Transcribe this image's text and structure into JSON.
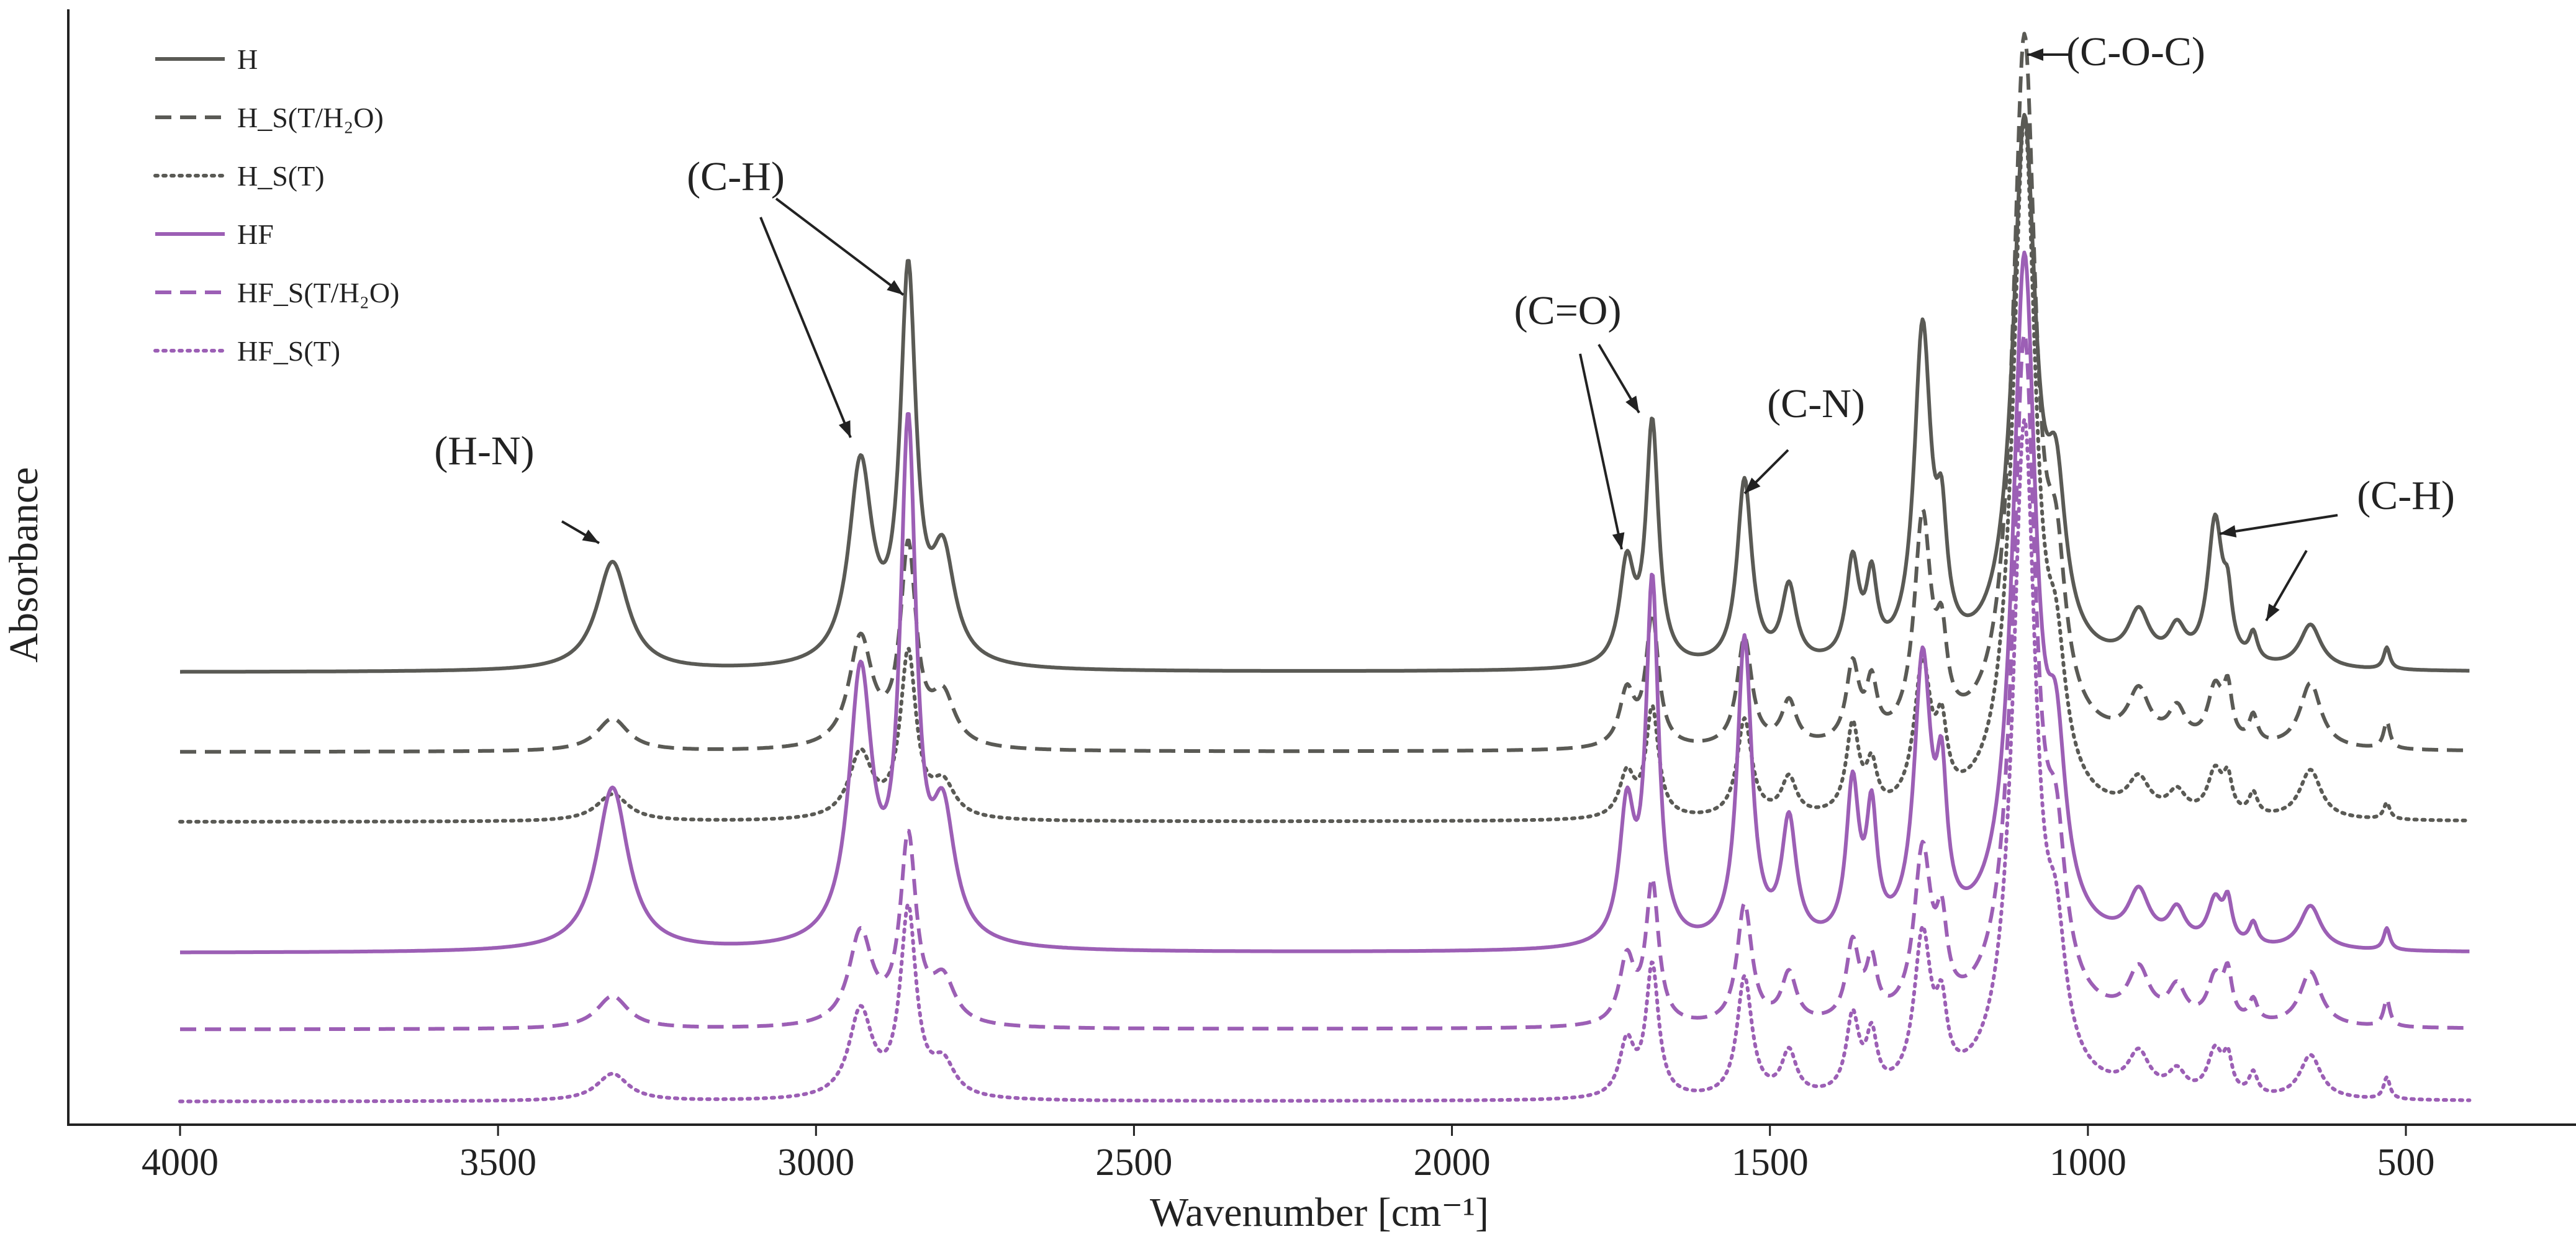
{
  "chart_data": {
    "type": "line",
    "title": "",
    "xlabel": "Wavenumber [cm⁻¹]",
    "ylabel": "Absorbance",
    "xlim": [
      4000,
      400
    ],
    "x_reversed": true,
    "xticks": [
      4000,
      3500,
      3000,
      2500,
      2000,
      1500,
      1000,
      500
    ],
    "ylim": [
      0,
      1.0
    ],
    "y_ticks_shown": false,
    "grid": false,
    "legend_position": "top-left",
    "peak_positions": [
      3320,
      2930,
      2855,
      2800,
      1725,
      1685,
      1540,
      1470,
      1370,
      1340,
      1260,
      1230,
      1100,
      1050,
      920,
      860,
      800,
      780,
      740,
      650,
      530
    ],
    "series": [
      {
        "name": "H",
        "label": "H",
        "color": "#5a5a55",
        "style": "solid",
        "baseline": 0.413,
        "amplitudes": [
          0.1,
          0.182,
          0.35,
          0.095,
          0.09,
          0.22,
          0.17,
          0.07,
          0.09,
          0.07,
          0.3,
          0.095,
          0.49,
          0.13,
          0.045,
          0.03,
          0.13,
          0.045,
          0.025,
          0.04,
          0.02
        ]
      },
      {
        "name": "H_S(T/H2O)",
        "label": "H_S(T/H₂O)",
        "color": "#5a5a55",
        "style": "dashed",
        "baseline": 0.34,
        "amplitudes": [
          0.03,
          0.1,
          0.18,
          0.045,
          0.05,
          0.12,
          0.1,
          0.04,
          0.07,
          0.05,
          0.2,
          0.07,
          0.64,
          0.12,
          0.045,
          0.03,
          0.05,
          0.045,
          0.025,
          0.06,
          0.025
        ]
      },
      {
        "name": "H_S(T)",
        "label": "H_S(T)",
        "color": "#5a5a55",
        "style": "dotted",
        "baseline": 0.276,
        "amplitudes": [
          0.025,
          0.06,
          0.15,
          0.03,
          0.04,
          0.1,
          0.09,
          0.035,
          0.08,
          0.04,
          0.13,
          0.06,
          0.63,
          0.1,
          0.03,
          0.02,
          0.04,
          0.03,
          0.02,
          0.045,
          0.015
        ]
      },
      {
        "name": "HF",
        "label": "HF",
        "color": "#9c5fb5",
        "style": "solid",
        "baseline": 0.156,
        "amplitudes": [
          0.15,
          0.245,
          0.46,
          0.11,
          0.12,
          0.33,
          0.28,
          0.11,
          0.14,
          0.11,
          0.25,
          0.12,
          0.62,
          0.14,
          0.045,
          0.03,
          0.04,
          0.035,
          0.02,
          0.04,
          0.02
        ]
      },
      {
        "name": "HF_S(T/H2O)",
        "label": "HF_S(T/H₂O)",
        "color": "#9c5fb5",
        "style": "dashed",
        "baseline": 0.086,
        "amplitudes": [
          0.03,
          0.085,
          0.17,
          0.04,
          0.06,
          0.13,
          0.11,
          0.045,
          0.07,
          0.05,
          0.15,
          0.07,
          0.62,
          0.12,
          0.045,
          0.03,
          0.04,
          0.04,
          0.02,
          0.05,
          0.025
        ]
      },
      {
        "name": "HF_S(T)",
        "label": "HF_S(T)",
        "color": "#9c5fb5",
        "style": "dotted",
        "baseline": 0.02,
        "amplitudes": [
          0.025,
          0.08,
          0.17,
          0.03,
          0.05,
          0.12,
          0.11,
          0.04,
          0.07,
          0.05,
          0.14,
          0.06,
          0.61,
          0.1,
          0.035,
          0.02,
          0.04,
          0.03,
          0.02,
          0.04,
          0.02
        ]
      }
    ],
    "annotations": [
      {
        "label": "(H-N)",
        "target_x": 3320
      },
      {
        "label": "(C-H)",
        "target_x": 2935
      },
      {
        "label": "(C-H)",
        "target_x": 2855
      },
      {
        "label": "(C=O)",
        "target_x": 1725
      },
      {
        "label": "(C=O)",
        "target_x": 1685
      },
      {
        "label": "(C-N)",
        "target_x": 1540
      },
      {
        "label": "(C-O-C)",
        "target_x": 1100
      },
      {
        "label": "(C-H)",
        "target_x": 800
      },
      {
        "label": "(C-H)",
        "target_x": 650
      }
    ]
  }
}
